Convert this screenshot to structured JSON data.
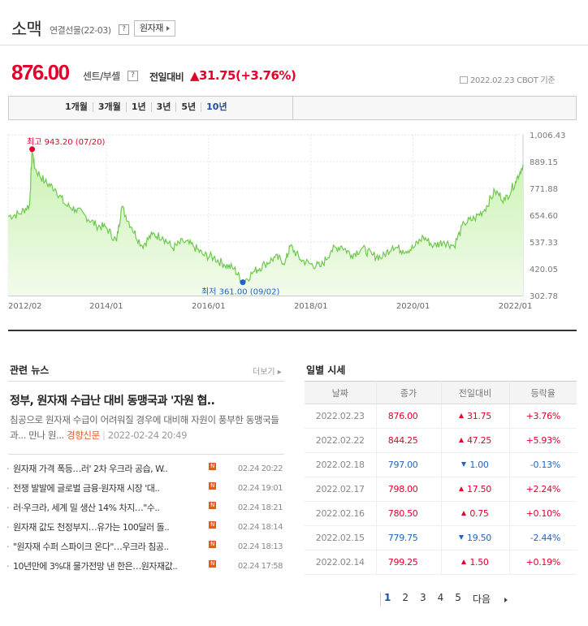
{
  "header": {
    "title": "소맥",
    "subtitle": "연결선물(22-03)",
    "help": "?",
    "raw_button": "원자재"
  },
  "quote": {
    "price": "876.00",
    "unit": "센트/부셸",
    "compare_label": "전일대비",
    "change": "▲31.75(+3.76%)",
    "date_info": "2022.02.23  CBOT 기준"
  },
  "tabs": [
    {
      "label": "1개월"
    },
    {
      "label": "3개월"
    },
    {
      "label": "1년"
    },
    {
      "label": "3년"
    },
    {
      "label": "5년"
    },
    {
      "label": "10년",
      "active": true
    }
  ],
  "chart_data": {
    "type": "area",
    "x_ticks": [
      "2012/02",
      "2014/01",
      "2016/01",
      "2018/01",
      "2020/01",
      "2022/01"
    ],
    "y_ticks": [
      "1,006.43",
      "889.15",
      "771.88",
      "654.60",
      "537.33",
      "420.05",
      "302.78"
    ],
    "ylim": [
      302.78,
      1006.43
    ],
    "max_label": "최고 943.20 (07/20)",
    "min_label": "최저 361.00 (09/02)",
    "colors": {
      "line": "#6fc94f",
      "fill_top": "#c9f2b0",
      "fill_bottom": "#f2fbec",
      "max": "#e4002b",
      "min": "#1e63c6"
    },
    "series": [
      {
        "x": [
          2012.08,
          2012.3,
          2012.5,
          2012.55,
          2012.6,
          2012.8,
          2013.0,
          2013.2,
          2013.4,
          2013.6,
          2013.8,
          2014.0,
          2014.2,
          2014.3,
          2014.5,
          2014.7,
          2014.9,
          2015.1,
          2015.3,
          2015.5,
          2015.7,
          2015.9,
          2016.1,
          2016.3,
          2016.5,
          2016.67,
          2016.9,
          2017.1,
          2017.3,
          2017.5,
          2017.6,
          2017.8,
          2018.0,
          2018.2,
          2018.4,
          2018.6,
          2018.8,
          2019.0,
          2019.2,
          2019.4,
          2019.6,
          2019.8,
          2020.0,
          2020.2,
          2020.4,
          2020.6,
          2020.8,
          2021.0,
          2021.2,
          2021.4,
          2021.6,
          2021.8,
          2022.0,
          2022.15
        ],
        "values": [
          650,
          660,
          700,
          943,
          860,
          800,
          770,
          700,
          680,
          650,
          610,
          600,
          540,
          690,
          600,
          520,
          570,
          560,
          510,
          540,
          520,
          480,
          470,
          440,
          420,
          361,
          410,
          440,
          470,
          450,
          520,
          460,
          440,
          430,
          500,
          520,
          480,
          510,
          480,
          470,
          520,
          500,
          510,
          560,
          520,
          540,
          520,
          620,
          640,
          680,
          760,
          720,
          800,
          876
        ]
      }
    ]
  },
  "news": {
    "title": "관련 뉴스",
    "more": "더보기",
    "headline": "정부, 원자재 수급난 대비 동맹국과 '자원 협..",
    "summary": "침공으로 원자재 수급이 어려워질 경우에 대비해 자원이 풍부한 동맹국들과... 만나 원...",
    "source": "경향신문",
    "summary_time": "2022-02-24 20:49",
    "items": [
      {
        "text": "원자재 가격 폭등…러' 2차 우크라 공습, W..",
        "time": "02.24 20:22"
      },
      {
        "text": "전쟁 발발에 글로벌 금융·원자재 시장 '대..",
        "time": "02.24 19:01"
      },
      {
        "text": "러·우크라, 세계 밀 생산 14% 차지…\"수..",
        "time": "02.24 18:21"
      },
      {
        "text": "원자재 값도 천정부지…유가는 100달러 돌..",
        "time": "02.24 18:14"
      },
      {
        "text": "\"원자재 수퍼 스파이크 온다\"…우크라 침공..",
        "time": "02.24 18:13"
      },
      {
        "text": "10년만에 3%대 물가전망 낸 한은…원자재값..",
        "time": "02.24 17:58"
      }
    ],
    "badge": "N"
  },
  "daily": {
    "title": "일별 시세",
    "headers": [
      "날짜",
      "종가",
      "전일대비",
      "등락율"
    ],
    "rows": [
      {
        "date": "2022.02.23",
        "close": "876.00",
        "change": "31.75",
        "dir": "up",
        "rate": "+3.76%"
      },
      {
        "date": "2022.02.22",
        "close": "844.25",
        "change": "47.25",
        "dir": "up",
        "rate": "+5.93%"
      },
      {
        "date": "2022.02.18",
        "close": "797.00",
        "change": "1.00",
        "dir": "down",
        "rate": "-0.13%"
      },
      {
        "date": "2022.02.17",
        "close": "798.00",
        "change": "17.50",
        "dir": "up",
        "rate": "+2.24%"
      },
      {
        "date": "2022.02.16",
        "close": "780.50",
        "change": "0.75",
        "dir": "up",
        "rate": "+0.10%"
      },
      {
        "date": "2022.02.15",
        "close": "779.75",
        "change": "19.50",
        "dir": "down",
        "rate": "-2.44%"
      },
      {
        "date": "2022.02.14",
        "close": "799.25",
        "change": "1.50",
        "dir": "up",
        "rate": "+0.19%"
      }
    ]
  },
  "pager": {
    "pages": [
      "1",
      "2",
      "3",
      "4",
      "5"
    ],
    "next": "다음"
  }
}
